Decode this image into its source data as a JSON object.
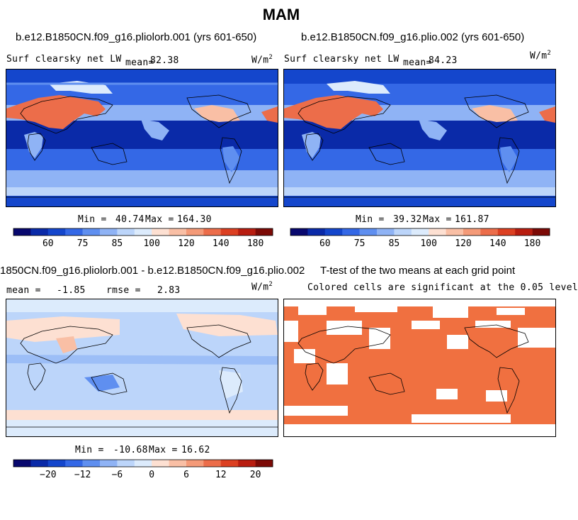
{
  "title": "MAM",
  "panels": [
    {
      "id": "p1",
      "case_title": "b.e12.B1850CN.f09_g16.pliolorb.001 (yrs 601-650)",
      "left_label": "Surf clearsky net LW",
      "mean_label": "mean=",
      "mean_value": "82.38",
      "units": "W/m",
      "units_exp": "2",
      "min_label": "Min =",
      "min_value": "40.74",
      "max_label": "Max =",
      "max_value": "164.30"
    },
    {
      "id": "p2",
      "case_title": "b.e12.B1850CN.f09_g16.plio.002 (yrs 601-650)",
      "left_label": "Surf clearsky net LW",
      "mean_label": "mean=",
      "mean_value": "84.23",
      "units": "W/m",
      "units_exp": "2",
      "min_label": "Min =",
      "min_value": "39.32",
      "max_label": "Max =",
      "max_value": "161.87"
    },
    {
      "id": "p3",
      "case_title": "1850CN.f09_g16.pliolorb.001 - b.e12.B1850CN.f09_g16.plio.002",
      "mean_label": "mean =",
      "mean_value": "-1.85",
      "rmse_label": "rmse =",
      "rmse_value": "2.83",
      "units": "W/m",
      "units_exp": "2",
      "min_label": "Min =",
      "min_value": "-10.68",
      "max_label": "Max =",
      "max_value": "16.62"
    },
    {
      "id": "p4",
      "case_title": "T-test of the two means at each grid point",
      "subtitle": "Colored cells are significant at the 0.05 level"
    }
  ],
  "colorbars": {
    "abs": {
      "colors": [
        "#08086e",
        "#0a2aa8",
        "#1446cc",
        "#3468e6",
        "#5f8ff0",
        "#8fb3f5",
        "#bcd5fa",
        "#dcebfc",
        "#fde0d2",
        "#f9bfa5",
        "#f49a78",
        "#ec6d4a",
        "#dc4022",
        "#b81d10",
        "#7c0a06"
      ],
      "tick_labels": [
        "60",
        "75",
        "85",
        "100",
        "120",
        "140",
        "180"
      ],
      "tick_positions": [
        2,
        4,
        6,
        8,
        10,
        12,
        14
      ]
    },
    "diff": {
      "colors": [
        "#08086e",
        "#0a2aa8",
        "#1446cc",
        "#3468e6",
        "#5f8ff0",
        "#8fb3f5",
        "#bcd5fa",
        "#dcebfc",
        "#fde0d2",
        "#f9bfa5",
        "#f49a78",
        "#ec6d4a",
        "#dc4022",
        "#b81d10",
        "#7c0a06"
      ],
      "tick_labels": [
        "-20",
        "-12",
        "-6",
        "0",
        "6",
        "12",
        "20"
      ],
      "tick_positions": [
        2,
        4,
        6,
        8,
        10,
        12,
        14
      ]
    }
  },
  "chart_data": [
    {
      "type": "heatmap",
      "title": "b.e12.B1850CN.f09_g16.pliolorb.001 (yrs 601-650)",
      "variable": "Surf clearsky net LW",
      "units": "W/m2",
      "mean": 82.38,
      "min": 40.74,
      "max": 164.3,
      "levels": [
        60,
        75,
        85,
        100,
        120,
        140,
        180
      ]
    },
    {
      "type": "heatmap",
      "title": "b.e12.B1850CN.f09_g16.plio.002 (yrs 601-650)",
      "variable": "Surf clearsky net LW",
      "units": "W/m2",
      "mean": 84.23,
      "min": 39.32,
      "max": 161.87,
      "levels": [
        60,
        75,
        85,
        100,
        120,
        140,
        180
      ]
    },
    {
      "type": "heatmap",
      "title": "1850CN.f09_g16.pliolorb.001 - b.e12.B1850CN.f09_g16.plio.002",
      "units": "W/m2",
      "mean": -1.85,
      "rmse": 2.83,
      "min": -10.68,
      "max": 16.62,
      "levels": [
        -20,
        -12,
        -6,
        0,
        6,
        12,
        20
      ]
    },
    {
      "type": "heatmap",
      "title": "T-test of the two means at each grid point",
      "subtitle": "Colored cells are significant at the 0.05 level",
      "significance_level": 0.05,
      "significant_color": "#f07040"
    }
  ]
}
